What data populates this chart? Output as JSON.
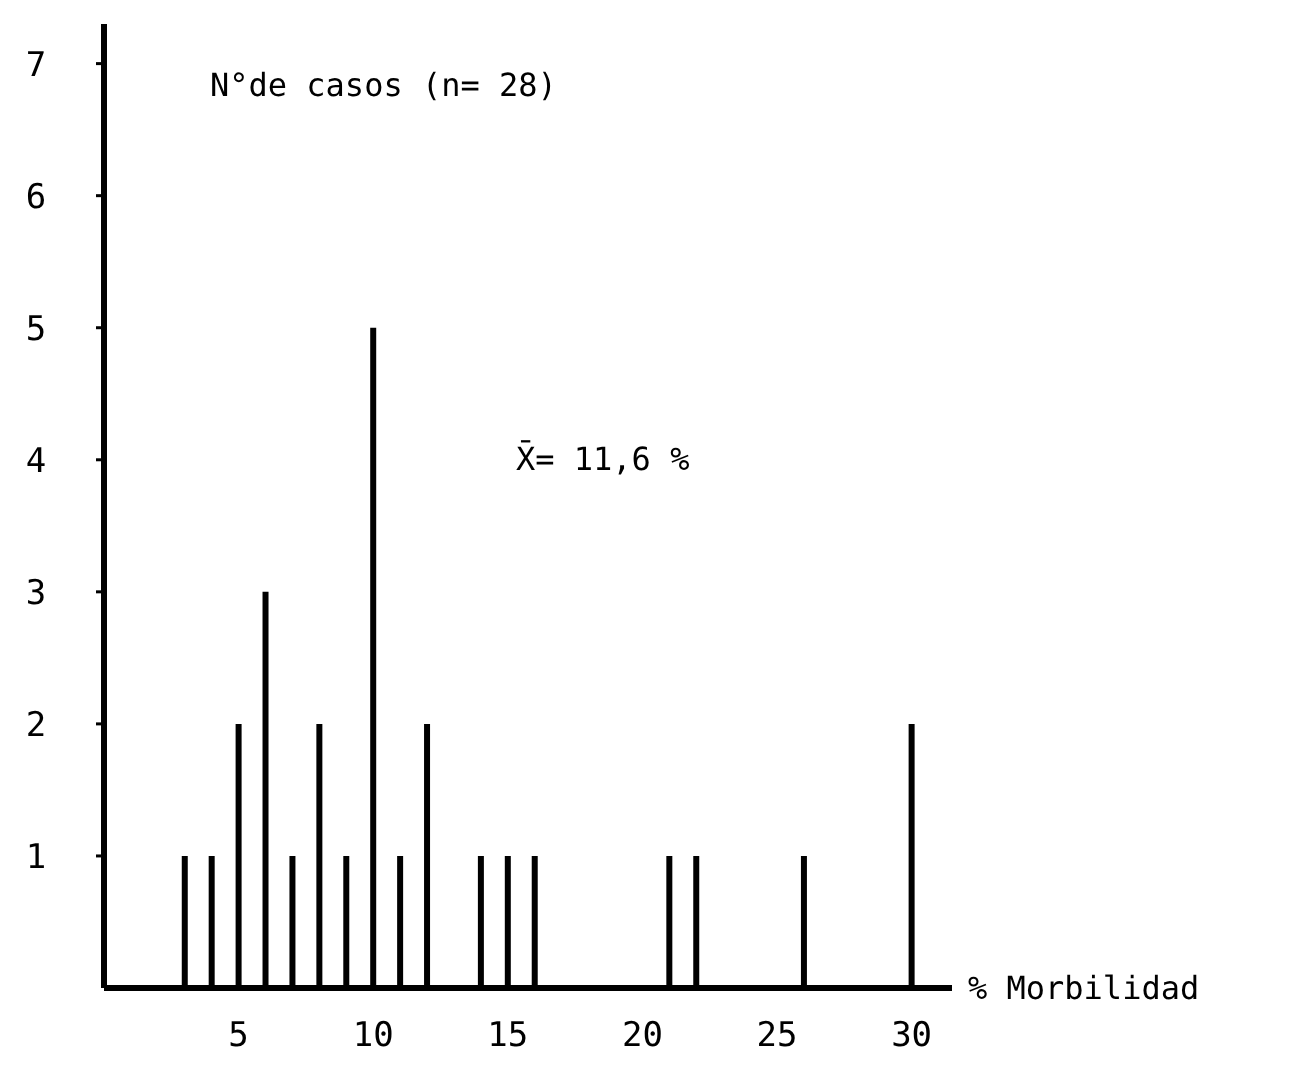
{
  "chart_data": {
    "type": "bar",
    "ylabel": "N°de casos (n= 28)",
    "xlabel": "% Morbilidad",
    "annotations": [
      "X̄= 11,6 %"
    ],
    "x": [
      3,
      4,
      5,
      6,
      7,
      8,
      9,
      10,
      11,
      12,
      14,
      15,
      16,
      21,
      22,
      26,
      30
    ],
    "values": [
      1,
      1,
      2,
      3,
      1,
      2,
      1,
      5,
      1,
      2,
      1,
      1,
      1,
      1,
      1,
      1,
      2
    ],
    "color": "#000000",
    "xlim": [
      0,
      31.5
    ],
    "xticks": [
      5,
      10,
      15,
      20,
      25,
      30
    ],
    "ylim": [
      0,
      7.3
    ],
    "yticks": [
      1,
      2,
      3,
      4,
      5,
      6,
      7
    ],
    "grid": false
  }
}
